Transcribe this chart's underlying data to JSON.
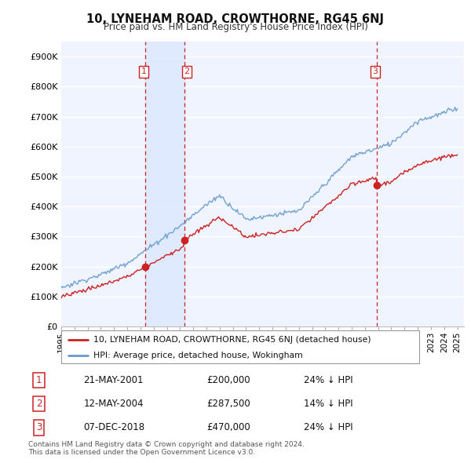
{
  "title": "10, LYNEHAM ROAD, CROWTHORNE, RG45 6NJ",
  "subtitle": "Price paid vs. HM Land Registry's House Price Index (HPI)",
  "ylabel_ticks": [
    "£0",
    "£100K",
    "£200K",
    "£300K",
    "£400K",
    "£500K",
    "£600K",
    "£700K",
    "£800K",
    "£900K"
  ],
  "ytick_values": [
    0,
    100000,
    200000,
    300000,
    400000,
    500000,
    600000,
    700000,
    800000,
    900000
  ],
  "ylim": [
    0,
    950000
  ],
  "xlim_start": 1995.0,
  "xlim_end": 2025.5,
  "sale_dates": [
    2001.385,
    2004.36,
    2018.92
  ],
  "sale_prices": [
    200000,
    287500,
    470000
  ],
  "sale_labels": [
    "1",
    "2",
    "3"
  ],
  "legend_property": "10, LYNEHAM ROAD, CROWTHORNE, RG45 6NJ (detached house)",
  "legend_hpi": "HPI: Average price, detached house, Wokingham",
  "table_entries": [
    {
      "num": "1",
      "date": "21-MAY-2001",
      "price": "£200,000",
      "pct": "24% ↓ HPI"
    },
    {
      "num": "2",
      "date": "12-MAY-2004",
      "price": "£287,500",
      "pct": "14% ↓ HPI"
    },
    {
      "num": "3",
      "date": "07-DEC-2018",
      "price": "£470,000",
      "pct": "24% ↓ HPI"
    }
  ],
  "footnote1": "Contains HM Land Registry data © Crown copyright and database right 2024.",
  "footnote2": "This data is licensed under the Open Government Licence v3.0.",
  "color_property": "#cc2222",
  "color_hpi": "#6699cc",
  "background_plot": "#f0f4ff",
  "background_fig": "#ffffff",
  "grid_color": "#ffffff",
  "dashed_line_color": "#cc2222",
  "shade_color": "#dde8ff",
  "label_box_color": "#cc2222"
}
